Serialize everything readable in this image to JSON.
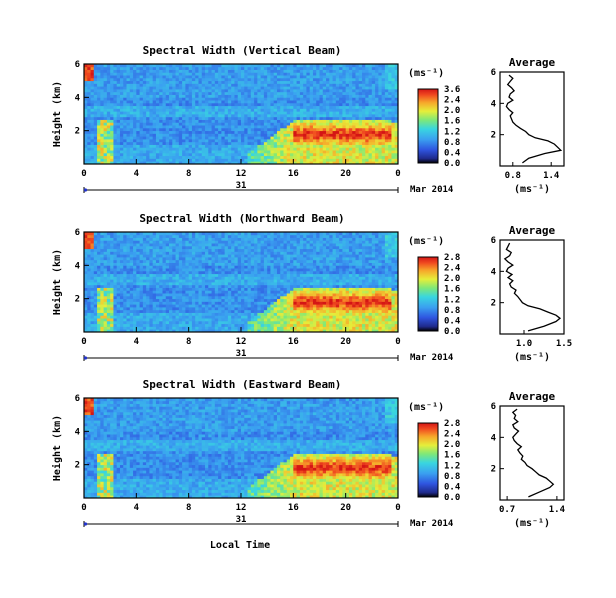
{
  "chart_data": [
    {
      "type": "heatmap",
      "title": "Spectral Width (Vertical Beam)",
      "ylabel": "Height (km)",
      "yticks": [
        "6",
        "4",
        "2"
      ],
      "ylim": [
        0,
        6
      ],
      "xticks": [
        "0",
        "4",
        "8",
        "12",
        "16",
        "20",
        "0"
      ],
      "xlim": [
        0,
        24
      ],
      "date_day": "31",
      "date_month_year": "Mar 2014",
      "colorbar": {
        "unit": "(ms⁻¹)",
        "ticks": [
          "3.6",
          "2.4",
          "2.0",
          "1.6",
          "1.2",
          "0.8",
          "0.4",
          "0.0"
        ]
      },
      "profile": {
        "title": "Average",
        "xlabel": "(ms⁻¹)",
        "xticks": [
          "0.8",
          "1.4"
        ],
        "xlim": [
          0.6,
          1.6
        ],
        "yticks": [
          "6",
          "4",
          "2"
        ],
        "height_km": [
          0.2,
          0.5,
          0.8,
          1.0,
          1.2,
          1.4,
          1.6,
          1.8,
          2.0,
          2.2,
          2.4,
          2.6,
          2.8,
          3.0,
          3.2,
          3.4,
          3.6,
          3.8,
          4.0,
          4.2,
          4.4,
          4.6,
          4.8,
          5.0,
          5.2,
          5.4,
          5.6,
          5.8
        ],
        "width": [
          0.95,
          1.05,
          1.3,
          1.55,
          1.5,
          1.45,
          1.35,
          1.15,
          1.05,
          1.0,
          0.92,
          0.85,
          0.8,
          0.78,
          0.76,
          0.8,
          0.74,
          0.7,
          0.72,
          0.8,
          0.74,
          0.76,
          0.82,
          0.78,
          0.72,
          0.76,
          0.8,
          0.74
        ]
      }
    },
    {
      "type": "heatmap",
      "title": "Spectral Width (Northward Beam)",
      "ylabel": "Height (km)",
      "yticks": [
        "6",
        "4",
        "2"
      ],
      "ylim": [
        0,
        6
      ],
      "xticks": [
        "0",
        "4",
        "8",
        "12",
        "16",
        "20",
        "0"
      ],
      "xlim": [
        0,
        24
      ],
      "date_day": "31",
      "date_month_year": "Mar 2014",
      "colorbar": {
        "unit": "(ms⁻¹)",
        "ticks": [
          "2.8",
          "2.4",
          "2.0",
          "1.6",
          "1.2",
          "0.8",
          "0.4",
          "0.0"
        ]
      },
      "profile": {
        "title": "Average",
        "xlabel": "(ms⁻¹)",
        "xticks": [
          "1.0",
          "1.5"
        ],
        "xlim": [
          0.7,
          1.5
        ],
        "yticks": [
          "6",
          "4",
          "2"
        ],
        "height_km": [
          0.2,
          0.5,
          0.8,
          1.0,
          1.2,
          1.4,
          1.6,
          1.8,
          2.0,
          2.2,
          2.4,
          2.6,
          2.8,
          3.0,
          3.2,
          3.4,
          3.6,
          3.8,
          4.0,
          4.2,
          4.4,
          4.6,
          4.8,
          5.0,
          5.2,
          5.4,
          5.6,
          5.8
        ],
        "width": [
          1.05,
          1.25,
          1.4,
          1.45,
          1.4,
          1.3,
          1.2,
          1.05,
          0.98,
          0.95,
          0.92,
          0.88,
          0.9,
          0.84,
          0.82,
          0.86,
          0.8,
          0.85,
          0.78,
          0.8,
          0.86,
          0.8,
          0.76,
          0.82,
          0.84,
          0.78,
          0.8,
          0.82
        ]
      }
    },
    {
      "type": "heatmap",
      "title": "Spectral Width (Eastward Beam)",
      "ylabel": "Height (km)",
      "yticks": [
        "6",
        "4",
        "2"
      ],
      "ylim": [
        0,
        6
      ],
      "xticks": [
        "0",
        "4",
        "8",
        "12",
        "16",
        "20",
        "0"
      ],
      "xlim": [
        0,
        24
      ],
      "date_day": "31",
      "date_month_year": "Mar 2014",
      "colorbar": {
        "unit": "(ms⁻¹)",
        "ticks": [
          "2.8",
          "2.4",
          "2.0",
          "1.6",
          "1.2",
          "0.8",
          "0.4",
          "0.0"
        ]
      },
      "profile": {
        "title": "Average",
        "xlabel": "(ms⁻¹)",
        "xticks": [
          "0.7",
          "1.4"
        ],
        "xlim": [
          0.6,
          1.5
        ],
        "yticks": [
          "6",
          "4",
          "2"
        ],
        "height_km": [
          0.2,
          0.5,
          0.8,
          1.0,
          1.2,
          1.4,
          1.6,
          1.8,
          2.0,
          2.2,
          2.4,
          2.6,
          2.8,
          3.0,
          3.2,
          3.4,
          3.6,
          3.8,
          4.0,
          4.2,
          4.4,
          4.6,
          4.8,
          5.0,
          5.2,
          5.4,
          5.6,
          5.8
        ],
        "width": [
          1.0,
          1.15,
          1.3,
          1.35,
          1.3,
          1.25,
          1.15,
          1.1,
          1.05,
          0.98,
          0.95,
          0.9,
          0.92,
          0.88,
          0.85,
          0.9,
          0.84,
          0.8,
          0.78,
          0.82,
          0.86,
          0.8,
          0.78,
          0.85,
          0.8,
          0.82,
          0.78,
          0.84
        ]
      }
    }
  ],
  "xlabel": "Local Time"
}
